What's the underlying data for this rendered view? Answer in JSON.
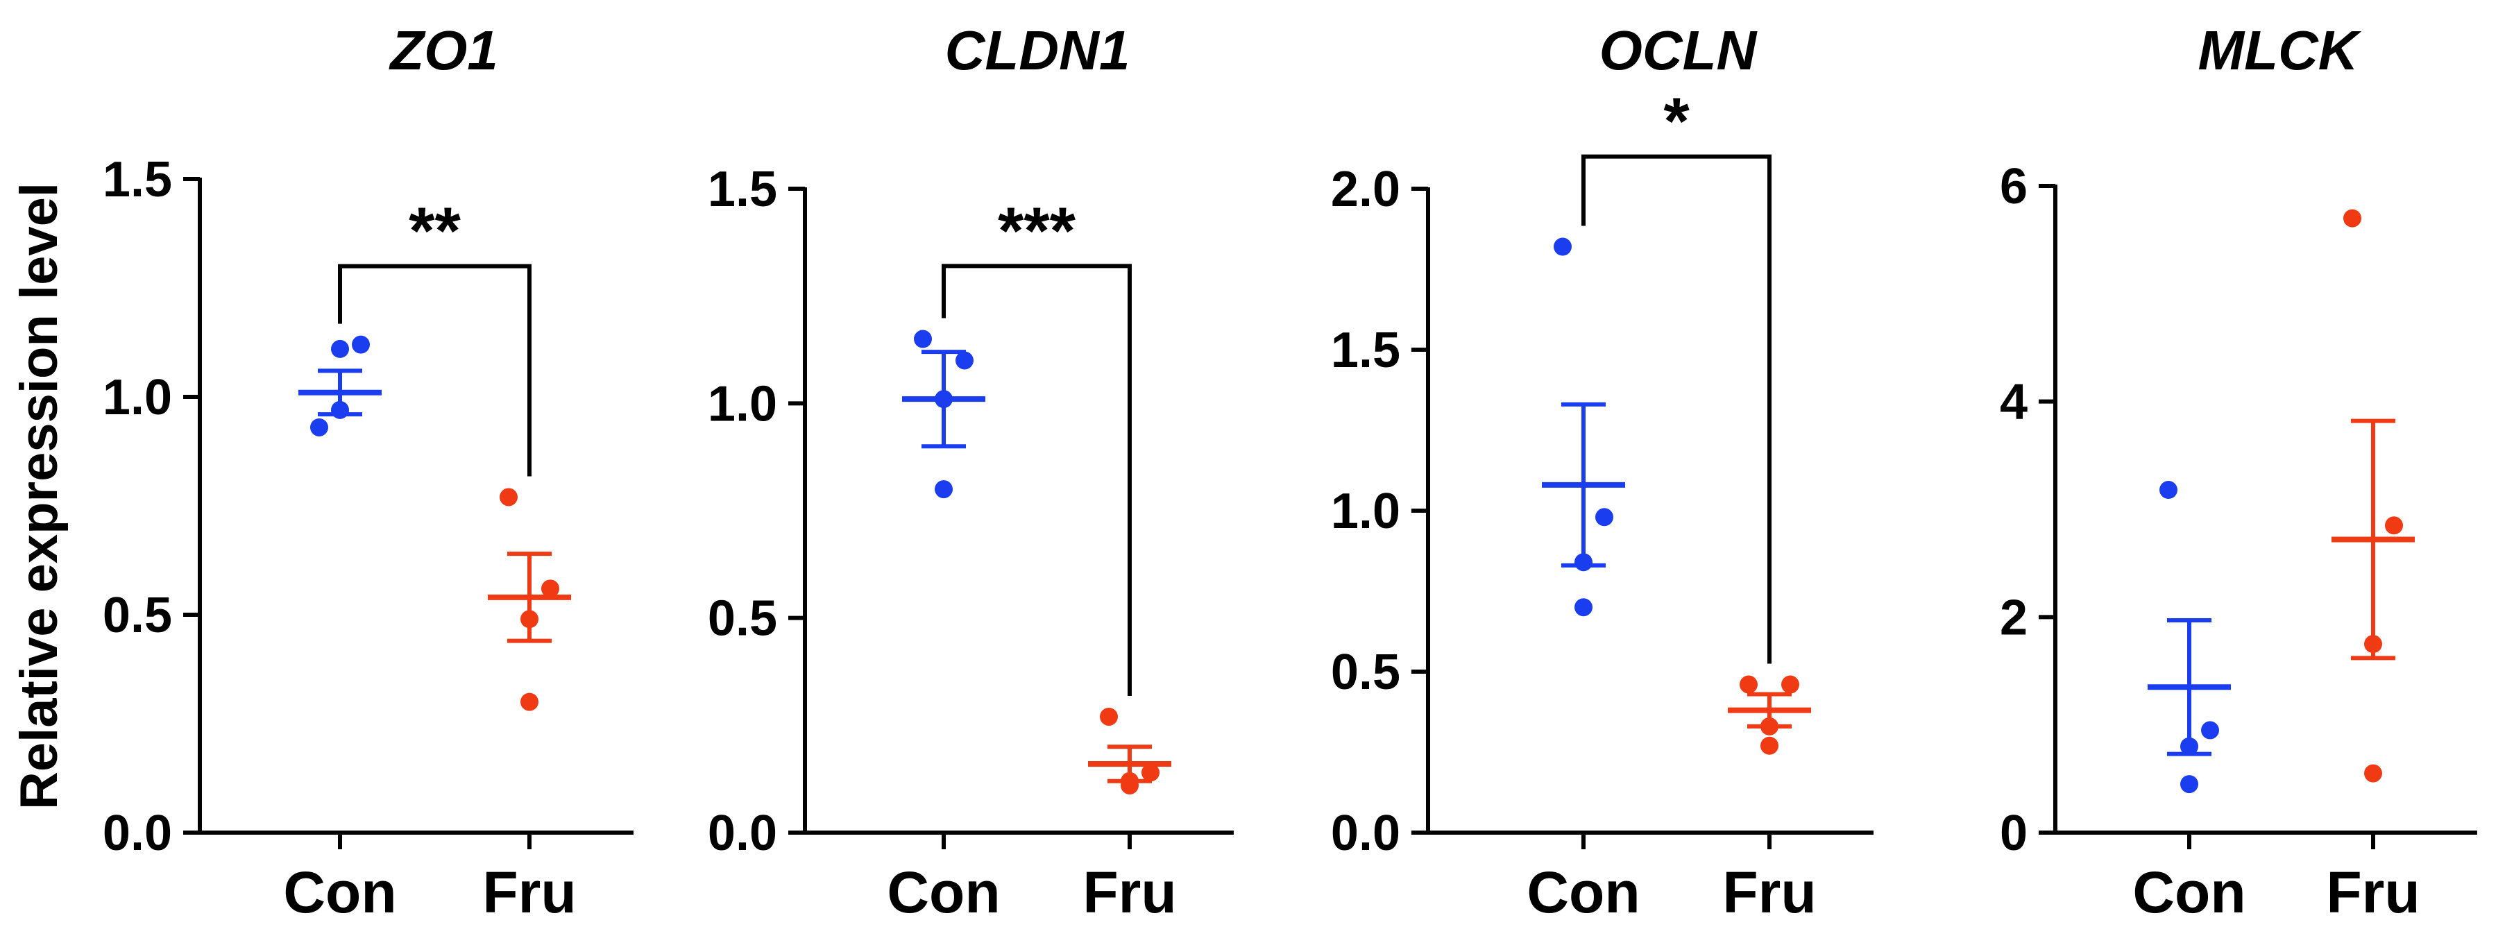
{
  "figure": {
    "ylabel": "Relative expression level",
    "group_colors": {
      "Con": "#1a3df0",
      "Fru": "#f03a14"
    },
    "axis_color": "#000000"
  },
  "chart_data": [
    {
      "type": "scatter",
      "title": "ZO1",
      "xlabel": "",
      "ylabel": "Relative expression level",
      "categories": [
        "Con",
        "Fru"
      ],
      "ylim": [
        0,
        1.5
      ],
      "yticks": [
        0.0,
        0.5,
        1.0,
        1.5
      ],
      "ytick_labels": [
        "0.0",
        "0.5",
        "1.0",
        "1.5"
      ],
      "series": [
        {
          "name": "Con",
          "points": [
            0.93,
            1.12,
            0.97,
            1.11
          ],
          "mean": 1.01,
          "sem": 0.05
        },
        {
          "name": "Fru",
          "points": [
            0.77,
            0.56,
            0.49,
            0.3
          ],
          "mean": 0.54,
          "sem": 0.1
        }
      ],
      "significance": {
        "label": "**",
        "y": 1.3
      }
    },
    {
      "type": "scatter",
      "title": "CLDN1",
      "xlabel": "",
      "ylabel": "",
      "categories": [
        "Con",
        "Fru"
      ],
      "ylim": [
        0,
        1.5
      ],
      "yticks": [
        0.0,
        0.5,
        1.0,
        1.5
      ],
      "ytick_labels": [
        "0.0",
        "0.5",
        "1.0",
        "1.5"
      ],
      "series": [
        {
          "name": "Con",
          "points": [
            1.15,
            1.1,
            0.8,
            1.01
          ],
          "mean": 1.01,
          "sem": 0.11
        },
        {
          "name": "Fru",
          "points": [
            0.27,
            0.14,
            0.11,
            0.12
          ],
          "mean": 0.16,
          "sem": 0.04
        }
      ],
      "significance": {
        "label": "***",
        "y": 1.32
      }
    },
    {
      "type": "scatter",
      "title": "OCLN",
      "xlabel": "",
      "ylabel": "",
      "categories": [
        "Con",
        "Fru"
      ],
      "ylim": [
        0,
        2.0
      ],
      "yticks": [
        0.0,
        0.5,
        1.0,
        1.5,
        2.0
      ],
      "ytick_labels": [
        "0.0",
        "0.5",
        "1.0",
        "1.5",
        "2.0"
      ],
      "series": [
        {
          "name": "Con",
          "points": [
            1.82,
            0.98,
            0.84,
            0.7
          ],
          "mean": 1.08,
          "sem": 0.25
        },
        {
          "name": "Fru",
          "points": [
            0.46,
            0.46,
            0.33,
            0.27
          ],
          "mean": 0.38,
          "sem": 0.05
        }
      ],
      "significance": {
        "label": "*",
        "y": 2.1
      }
    },
    {
      "type": "scatter",
      "title": "MLCK",
      "xlabel": "",
      "ylabel": "",
      "categories": [
        "Con",
        "Fru"
      ],
      "ylim": [
        0,
        6
      ],
      "yticks": [
        0,
        2,
        4,
        6
      ],
      "ytick_labels": [
        "0",
        "2",
        "4",
        "6"
      ],
      "series": [
        {
          "name": "Con",
          "points": [
            3.18,
            0.95,
            0.8,
            0.45
          ],
          "mean": 1.35,
          "sem": 0.62
        },
        {
          "name": "Fru",
          "points": [
            5.7,
            2.85,
            1.75,
            0.55
          ],
          "mean": 2.72,
          "sem": 1.1
        }
      ],
      "significance": null
    }
  ]
}
